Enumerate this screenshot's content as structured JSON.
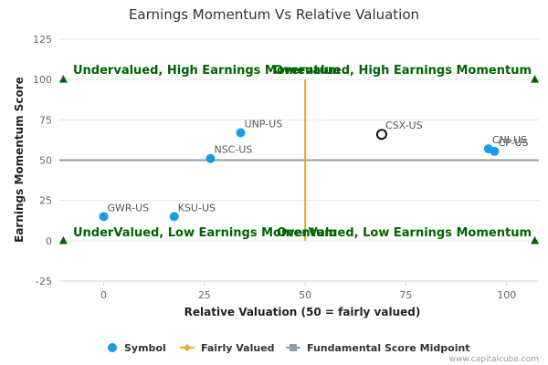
{
  "chart_data": {
    "type": "scatter",
    "title": "Earnings Momentum Vs Relative Valuation",
    "xlabel": "Relative Valuation (50 = fairly valued)",
    "ylabel": "Earnings Momentum Score",
    "xlim": [
      -11,
      108
    ],
    "ylim": [
      -25,
      125
    ],
    "x_ticks": [
      0,
      25,
      50,
      75,
      100
    ],
    "y_ticks": [
      -25,
      0,
      25,
      50,
      75,
      100,
      125
    ],
    "grid": "horizontal",
    "legend": "bottom",
    "quadrant_labels": {
      "top_left": "Undervalued, High Earnings Momentum",
      "top_right": "Overvalued, High Earnings Momentum",
      "bottom_left": "UnderValued, Low Earnings Momentum",
      "bottom_right": "OverValued, Low Earnings Momentum"
    },
    "points": [
      {
        "label": "GWR-US",
        "x": 0,
        "y": 15,
        "highlight": false
      },
      {
        "label": "KSU-US",
        "x": 17.5,
        "y": 15,
        "highlight": false
      },
      {
        "label": "NSC-US",
        "x": 26.5,
        "y": 51,
        "highlight": false
      },
      {
        "label": "UNP-US",
        "x": 34,
        "y": 67,
        "highlight": false
      },
      {
        "label": "CSX-US",
        "x": 69,
        "y": 66,
        "highlight": true
      },
      {
        "label": "CNI-US",
        "x": 95.5,
        "y": 57,
        "highlight": false
      },
      {
        "label": "CP-US",
        "x": 97,
        "y": 55.5,
        "highlight": false
      }
    ],
    "fairly_valued_x": 50,
    "midpoint_y": 50,
    "triangle_markers": [
      {
        "x": -10,
        "y": 100
      },
      {
        "x": 107,
        "y": 100
      },
      {
        "x": -10,
        "y": 0
      },
      {
        "x": 107,
        "y": 0
      }
    ],
    "legend_entries": [
      {
        "name": "Symbol",
        "color": "#1a9be8",
        "marker": "circle"
      },
      {
        "name": "Fairly Valued",
        "color": "#f5a623",
        "marker": "diamond-line"
      },
      {
        "name": "Fundamental Score Midpoint",
        "color": "#8e9aa6",
        "marker": "square-line"
      }
    ],
    "colors": {
      "point": "#1a9be8",
      "highlight_stroke": "#111111",
      "fair_line": "#f5a623",
      "midpoint_line": "#8e9aa6",
      "quadrant_text": "#006400",
      "grid": "#e6e6e6"
    }
  },
  "credit": "www.capitalcube.com"
}
